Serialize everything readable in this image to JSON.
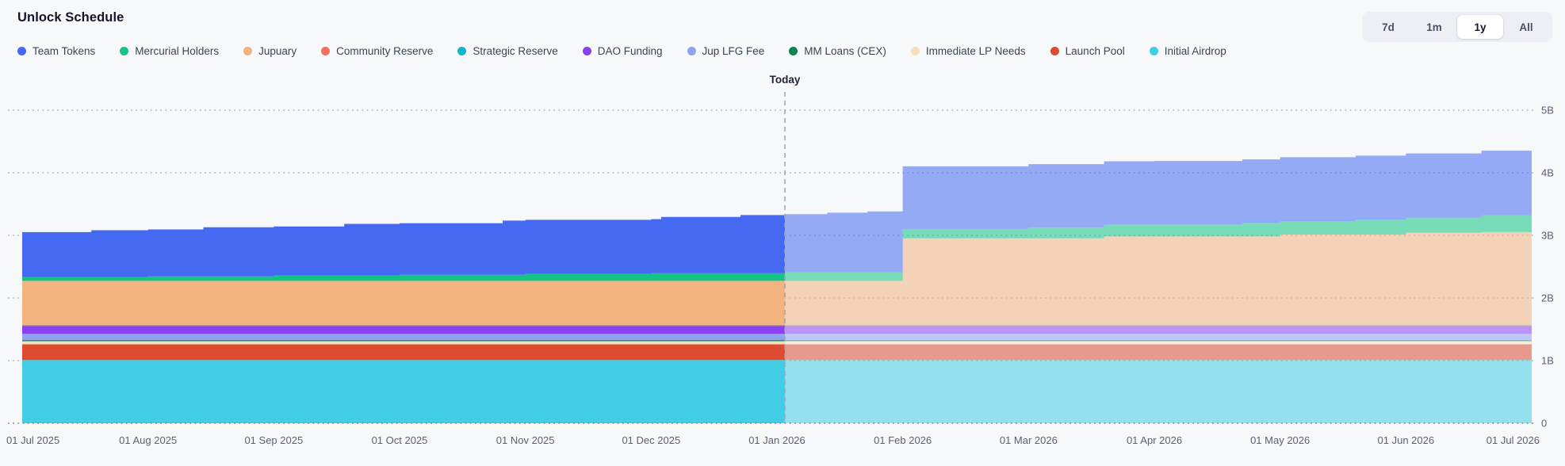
{
  "header": {
    "title": "Unlock Schedule"
  },
  "range_selector": {
    "options": [
      "7d",
      "1m",
      "1y",
      "All"
    ],
    "active": "1y"
  },
  "chart_data": {
    "type": "area",
    "stacked": true,
    "title": "Unlock Schedule",
    "unit": "billions of tokens",
    "x_axis": {
      "ticks": [
        "01 Jul 2025",
        "01 Aug 2025",
        "01 Sep 2025",
        "01 Oct 2025",
        "01 Nov 2025",
        "01 Dec 2025",
        "01 Jan 2026",
        "01 Feb 2026",
        "01 Mar 2026",
        "01 Apr 2026",
        "01 May 2026",
        "01 Jun 2026",
        "01 Jul 2026"
      ]
    },
    "y_axis": {
      "ticks": [
        "0",
        "1B",
        "2B",
        "3B",
        "4B",
        "5B"
      ],
      "min": 0,
      "max": 5,
      "side": "right"
    },
    "grid": "dotted-horizontal",
    "today": {
      "label": "Today",
      "months_from_start": 6.063
    },
    "future_opacity": 0.55,
    "colors": {
      "background": "#F7F8FA",
      "grid": "#ADB3BF",
      "today_line": "#9CA3AF",
      "axis_text": "#596273"
    },
    "series_note": "legend order top-of-stack first; steps are [months_since_01_Jul_2025, value_in_billions], step-after interpolation; values right of today rendered at future_opacity",
    "series": [
      {
        "name": "Team Tokens",
        "color": "#4569F0",
        "steps": [
          [
            0,
            0.72
          ],
          [
            0.55,
            0.75
          ],
          [
            1.44,
            0.785
          ],
          [
            2.56,
            0.825
          ],
          [
            3.82,
            0.865
          ],
          [
            5.08,
            0.9
          ],
          [
            5.71,
            0.93
          ],
          [
            6.4,
            0.955
          ],
          [
            6.72,
            0.975
          ],
          [
            7,
            1.0
          ],
          [
            8,
            1.01
          ],
          [
            9,
            1.015
          ],
          [
            10,
            1.02
          ],
          [
            11,
            1.025
          ],
          [
            11.6,
            1.03
          ]
        ]
      },
      {
        "name": "Mercurial Holders",
        "color": "#12C584",
        "steps": [
          [
            0,
            0.06
          ],
          [
            1,
            0.072
          ],
          [
            2,
            0.085
          ],
          [
            3,
            0.097
          ],
          [
            4,
            0.11
          ],
          [
            5,
            0.122
          ],
          [
            6.063,
            0.135
          ],
          [
            7,
            0.15
          ],
          [
            8,
            0.175
          ],
          [
            8.6,
            0.19
          ],
          [
            9.7,
            0.215
          ],
          [
            10.6,
            0.24
          ],
          [
            11.6,
            0.27
          ]
        ]
      },
      {
        "name": "Jupuary",
        "color": "#F3B37F",
        "steps": [
          [
            0,
            0.7
          ],
          [
            7,
            1.38
          ],
          [
            8.6,
            1.41
          ],
          [
            10,
            1.44
          ],
          [
            11,
            1.47
          ],
          [
            11.6,
            1.48
          ]
        ]
      },
      {
        "name": "Community Reserve",
        "color": "#F4705B",
        "steps": [
          [
            0,
            0.012
          ]
        ]
      },
      {
        "name": "Strategic Reserve",
        "color": "#0CB8C6",
        "steps": [
          [
            0,
            0.008
          ]
        ]
      },
      {
        "name": "DAO Funding",
        "color": "#8A3FF3",
        "steps": [
          [
            0,
            0.125
          ]
        ]
      },
      {
        "name": "Jup LFG Fee",
        "color": "#8CA4EF",
        "steps": [
          [
            0,
            0.1
          ]
        ]
      },
      {
        "name": "MM Loans (CEX)",
        "color": "#06854F",
        "steps": [
          [
            0,
            0.018
          ]
        ]
      },
      {
        "name": "Immediate LP Needs",
        "color": "#F7DFBC",
        "steps": [
          [
            0,
            0.05
          ]
        ]
      },
      {
        "name": "Launch Pool",
        "color": "#DE4B31",
        "steps": [
          [
            0,
            0.25
          ]
        ]
      },
      {
        "name": "Initial Airdrop",
        "color": "#41CEE5",
        "steps": [
          [
            0,
            1.01
          ]
        ]
      }
    ]
  }
}
